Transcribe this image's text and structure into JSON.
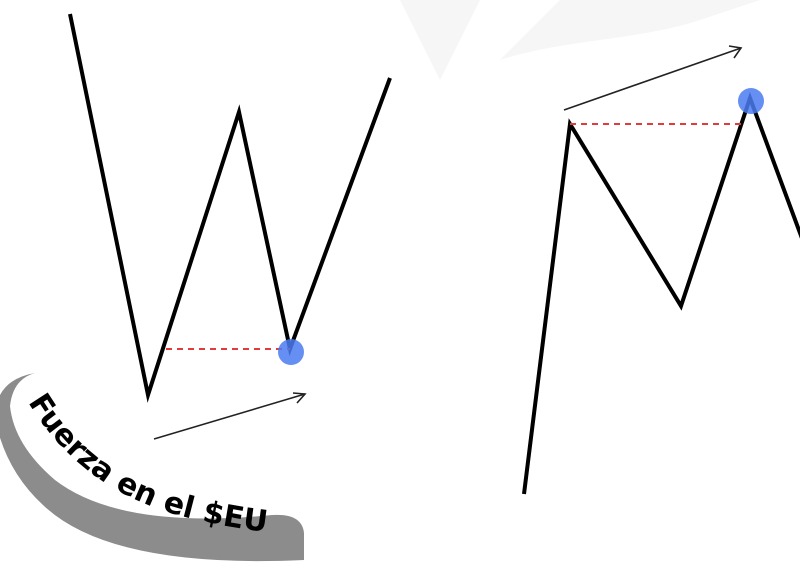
{
  "badge": {
    "text": "Fuerza en el $EU",
    "background": "#8c8c8c"
  },
  "colors": {
    "line": "#000000",
    "level": "#e23b3b",
    "dot": "#4a7bf0",
    "watermark": "#f6f6f6"
  },
  "icons": {
    "arrows": "thin-arrow-icon"
  }
}
